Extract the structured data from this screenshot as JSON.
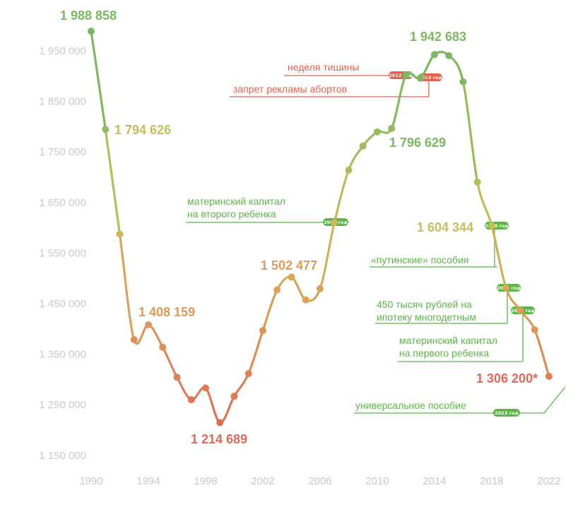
{
  "chart_data": {
    "type": "line",
    "title": "",
    "xlabel": "",
    "ylabel": "",
    "xlim": [
      1990,
      2022
    ],
    "ylim": [
      1150000,
      1950000
    ],
    "x_ticks": [
      "1990",
      "1994",
      "1998",
      "2002",
      "2006",
      "2010",
      "2014",
      "2018",
      "2022"
    ],
    "y_ticks": [
      "1 950 000",
      "1 850 000",
      "1 750 000",
      "1 650 000",
      "1 550 000",
      "1 450 000",
      "1 350 000",
      "1 250 000",
      "1 150 000"
    ],
    "grid": false,
    "legend": "none",
    "colors": {
      "green": "#7bb861",
      "yellow": "#c8bd5c",
      "orange": "#dd9a5a",
      "red": "#dc6a58",
      "annotation_green": "#5cb546",
      "annotation_red": "#e2624f"
    },
    "series": [
      {
        "x": [
          1990,
          1991,
          1992,
          1993,
          1994,
          1995,
          1996,
          1997,
          1998,
          1999,
          2000,
          2001,
          2002,
          2003,
          2004,
          2005,
          2006,
          2007,
          2008,
          2009,
          2010,
          2011,
          2012,
          2013,
          2014,
          2015,
          2016,
          2017,
          2018,
          2019,
          2020,
          2021,
          2022
        ],
        "values": [
          1988858,
          1794626,
          1587600,
          1378983,
          1408159,
          1363800,
          1304600,
          1259900,
          1283300,
          1214689,
          1266800,
          1311600,
          1396700,
          1477300,
          1502477,
          1457400,
          1479600,
          1610100,
          1713900,
          1761700,
          1789600,
          1796629,
          1902100,
          1895800,
          1942683,
          1940600,
          1888700,
          1690300,
          1604344,
          1481100,
          1436500,
          1398300,
          1306200
        ]
      }
    ],
    "data_labels": [
      {
        "x": 1990,
        "text": "1 988 858",
        "color": "green"
      },
      {
        "x": 1991,
        "text": "1 794 626",
        "color": "yellow"
      },
      {
        "x": 1994,
        "text": "1 408 159",
        "color": "orange"
      },
      {
        "x": 1999,
        "text": "1 214 689",
        "color": "red"
      },
      {
        "x": 2004,
        "text": "1 502 477",
        "color": "orange"
      },
      {
        "x": 2011,
        "text": "1 796 629",
        "color": "green"
      },
      {
        "x": 2014,
        "text": "1 942 683",
        "color": "green"
      },
      {
        "x": 2018,
        "text": "1 604 344",
        "color": "yellow"
      },
      {
        "x": 2022,
        "text": "1 306 200*",
        "color": "red"
      }
    ],
    "annotations": [
      {
        "lines": [
          "неделя тишины"
        ],
        "badge": "2012 год",
        "color": "red"
      },
      {
        "lines": [
          "запрет рекламы абортов"
        ],
        "badge": "2013 год",
        "color": "red"
      },
      {
        "lines": [
          "материнский капитал",
          "на второго ребенка"
        ],
        "badge": "2007 год",
        "color": "green"
      },
      {
        "lines": [
          "«путинские» пособия"
        ],
        "badge": "2018 год",
        "color": "green"
      },
      {
        "lines": [
          "450 тысяч рублей на",
          "ипотеку многодетным"
        ],
        "badge": "2019 год",
        "color": "green"
      },
      {
        "lines": [
          "материнский капитал",
          "на первого ребенка"
        ],
        "badge": "2020 год",
        "color": "green"
      },
      {
        "lines": [
          "универсальное пособие"
        ],
        "badge": "2023 год",
        "color": "green"
      }
    ]
  }
}
